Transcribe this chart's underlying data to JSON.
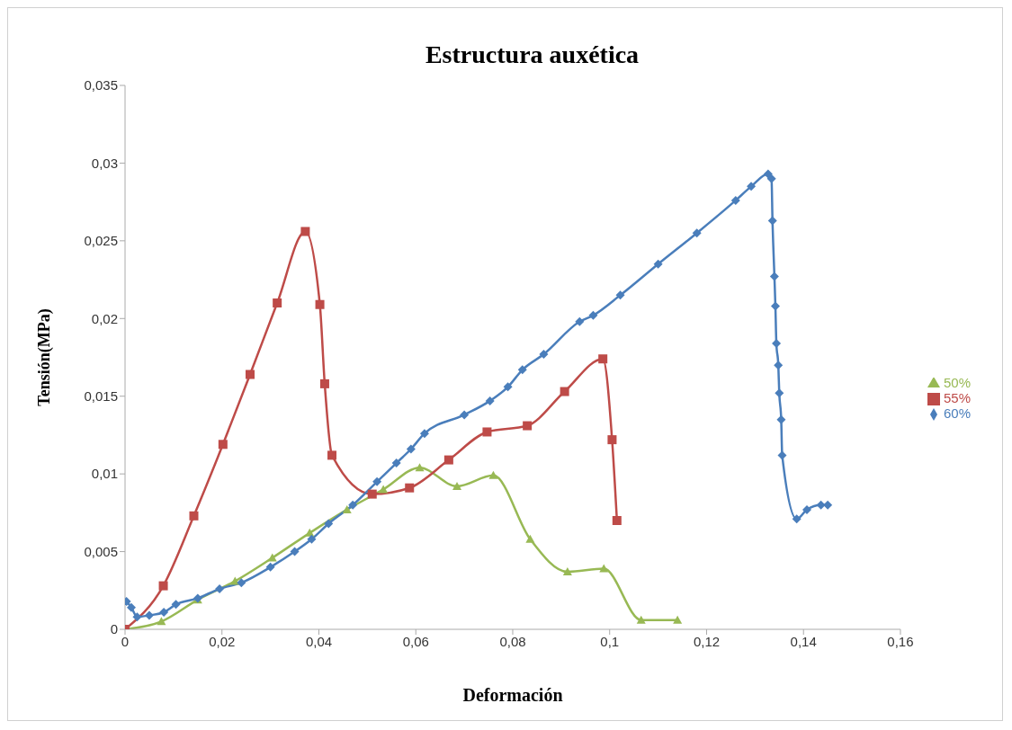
{
  "chart_data": {
    "type": "line",
    "title": "Estructura auxética",
    "xlabel": "Deformación",
    "ylabel": "Tensión(MPa)",
    "xlim": [
      0,
      0.16
    ],
    "xticks": [
      0,
      {
        "value": 0.02,
        "label": "0,02"
      },
      {
        "value": 0.04,
        "label": "0,04"
      },
      {
        "value": 0.06,
        "label": "0,06"
      },
      {
        "value": 0.08,
        "label": "0,08"
      },
      {
        "value": 0.1,
        "label": "0,1"
      },
      {
        "value": 0.12,
        "label": "0,12"
      },
      {
        "value": 0.14,
        "label": "0,14"
      },
      {
        "value": 0.16,
        "label": "0,16"
      }
    ],
    "ylim": [
      0,
      0.035
    ],
    "yticks": [
      0,
      {
        "value": 0.005,
        "label": "0,005"
      },
      {
        "value": 0.01,
        "label": "0,01"
      },
      {
        "value": 0.015,
        "label": "0,015"
      },
      {
        "value": 0.02,
        "label": "0,02"
      },
      {
        "value": 0.025,
        "label": "0,025"
      },
      {
        "value": 0.03,
        "label": "0,03"
      },
      {
        "value": 0.035,
        "label": "0,035"
      }
    ],
    "grid": false,
    "legend": "right",
    "line_style": "solid",
    "series": [
      {
        "name": "60%",
        "color": "#4a7ebb",
        "marker": "diamond",
        "x": [
          0.0003,
          0.0013,
          0.0025,
          0.005,
          0.008,
          0.0105,
          0.015,
          0.0195,
          0.024,
          0.03,
          0.035,
          0.0385,
          0.042,
          0.047,
          0.052,
          0.056,
          0.059,
          0.0618,
          0.07,
          0.0753,
          0.079,
          0.082,
          0.0864,
          0.0938,
          0.0966,
          0.1022,
          0.11,
          0.118,
          0.126,
          0.1292,
          0.1327,
          0.1334,
          0.1336,
          0.134,
          0.1342,
          0.1344,
          0.1348,
          0.135,
          0.1354,
          0.1356,
          0.1386,
          0.1407,
          0.1436,
          0.145
        ],
        "values": [
          0.0018,
          0.0014,
          0.0008,
          0.0009,
          0.0011,
          0.0016,
          0.002,
          0.0026,
          0.003,
          0.004,
          0.005,
          0.0058,
          0.0068,
          0.008,
          0.0095,
          0.0107,
          0.0116,
          0.0126,
          0.0138,
          0.0147,
          0.0156,
          0.0167,
          0.0177,
          0.0198,
          0.0202,
          0.0215,
          0.0235,
          0.0255,
          0.0276,
          0.0285,
          0.0293,
          0.029,
          0.0263,
          0.0227,
          0.0208,
          0.0184,
          0.017,
          0.0152,
          0.0135,
          0.0112,
          0.0071,
          0.0077,
          0.008,
          0.008
        ]
      },
      {
        "name": "55%",
        "color": "#be4b48",
        "marker": "square",
        "x": [
          0,
          0.0079,
          0.0142,
          0.0202,
          0.0258,
          0.0314,
          0.0372,
          0.0402,
          0.0412,
          0.0427,
          0.051,
          0.0587,
          0.0668,
          0.0747,
          0.083,
          0.0907,
          0.0986,
          0.1005,
          0.1015
        ],
        "values": [
          0,
          0.0028,
          0.0073,
          0.0119,
          0.0164,
          0.021,
          0.0256,
          0.0209,
          0.0158,
          0.0112,
          0.0087,
          0.0091,
          0.0109,
          0.0127,
          0.0131,
          0.0153,
          0.0174,
          0.0122,
          0.007
        ]
      },
      {
        "name": "50%",
        "color": "#98b954",
        "marker": "triangle",
        "x": [
          0,
          0.0075,
          0.015,
          0.0227,
          0.0304,
          0.0381,
          0.0458,
          0.0533,
          0.0608,
          0.0685,
          0.076,
          0.0836,
          0.0913,
          0.0988,
          0.1065,
          0.114
        ],
        "values": [
          0,
          0.0005,
          0.0019,
          0.0031,
          0.0046,
          0.0062,
          0.0077,
          0.009,
          0.0104,
          0.0092,
          0.0099,
          0.0058,
          0.0037,
          0.0039,
          0.0006,
          0.0006
        ]
      }
    ]
  }
}
